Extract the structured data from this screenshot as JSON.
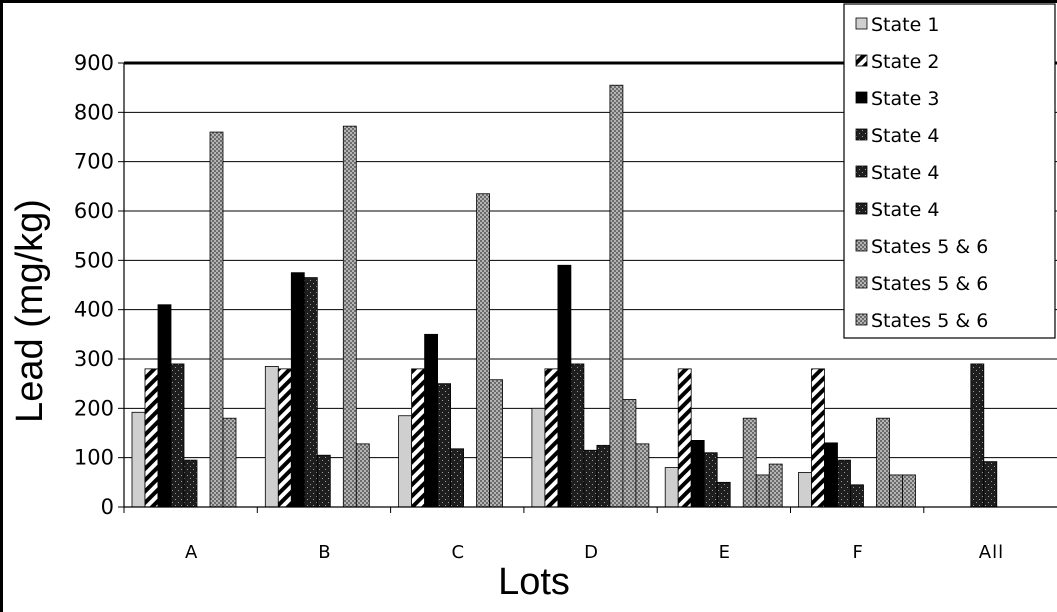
{
  "chart_data": {
    "type": "bar",
    "xlabel": "Lots",
    "ylabel": "Lead (mg/kg)",
    "ylim": [
      0,
      900
    ],
    "yticks": [
      0,
      100,
      200,
      300,
      400,
      500,
      600,
      700,
      800,
      900
    ],
    "categories": [
      "A",
      "B",
      "C",
      "D",
      "E",
      "F",
      "All"
    ],
    "grid": true,
    "legend_position": "top-right",
    "series": [
      {
        "name": "State 1",
        "pattern": "light-gray",
        "values": [
          192,
          285,
          185,
          200,
          80,
          70,
          null
        ]
      },
      {
        "name": "State 2",
        "pattern": "diagonal-hatch",
        "values": [
          280,
          280,
          280,
          280,
          280,
          280,
          null
        ]
      },
      {
        "name": "State 3",
        "pattern": "solid-black",
        "values": [
          410,
          475,
          350,
          490,
          135,
          130,
          null
        ]
      },
      {
        "name": "State 4",
        "pattern": "dark-dotted",
        "values": [
          290,
          465,
          250,
          290,
          110,
          95,
          290
        ]
      },
      {
        "name": "State 4",
        "pattern": "dark-dotted",
        "values": [
          95,
          105,
          118,
          115,
          50,
          45,
          92
        ]
      },
      {
        "name": "State 4",
        "pattern": "dark-dotted",
        "values": [
          null,
          null,
          null,
          125,
          null,
          null,
          null
        ]
      },
      {
        "name": "States 5 & 6",
        "pattern": "gray-checker",
        "values": [
          760,
          772,
          635,
          855,
          180,
          180,
          null
        ]
      },
      {
        "name": "States 5 & 6",
        "pattern": "gray-checker",
        "values": [
          180,
          128,
          258,
          218,
          65,
          65,
          null
        ]
      },
      {
        "name": "States 5 & 6",
        "pattern": "gray-checker",
        "values": [
          null,
          null,
          null,
          128,
          87,
          65,
          null
        ]
      }
    ]
  }
}
